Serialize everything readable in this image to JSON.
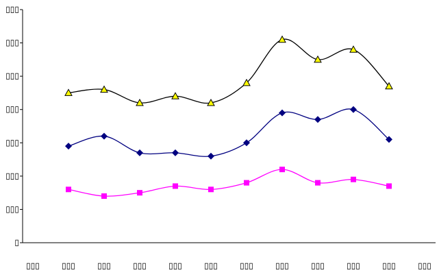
{
  "chart_data": {
    "type": "line",
    "categories": [
      "▯▯▯",
      "▯▯▯",
      "▯▯▯",
      "▯▯▯",
      "▯▯▯",
      "▯▯▯",
      "▯▯▯",
      "▯▯▯",
      "▯▯▯",
      "▯▯▯",
      "▯▯▯",
      "▯▯▯"
    ],
    "series": [
      {
        "color": "#000000",
        "marker": "triangle",
        "marker_color": "#ffff00",
        "values": [
          null,
          4.5,
          4.6,
          4.2,
          4.4,
          4.2,
          4.8,
          6.1,
          5.5,
          5.8,
          4.7,
          null
        ]
      },
      {
        "color": "#000080",
        "marker": "diamond",
        "marker_color": "#000080",
        "values": [
          null,
          2.9,
          3.2,
          2.7,
          2.7,
          2.6,
          3.0,
          3.9,
          3.7,
          4.0,
          3.1,
          null
        ]
      },
      {
        "color": "#ff00ff",
        "marker": "square",
        "marker_color": "#ff00ff",
        "values": [
          null,
          1.6,
          1.4,
          1.5,
          1.7,
          1.6,
          1.8,
          2.2,
          1.8,
          1.9,
          1.7,
          null
        ]
      }
    ],
    "ylim": [
      0,
      7
    ],
    "yticks": [
      {
        "value": 0,
        "label": "▯"
      },
      {
        "value": 1,
        "label": "▯▯▯"
      },
      {
        "value": 2,
        "label": "▯▯▯"
      },
      {
        "value": 3,
        "label": "▯▯▯"
      },
      {
        "value": 4,
        "label": "▯▯▯"
      },
      {
        "value": 5,
        "label": "▯▯▯"
      },
      {
        "value": 6,
        "label": "▯▯▯"
      },
      {
        "value": 7,
        "label": "▯▯▯"
      }
    ],
    "grid": false
  }
}
